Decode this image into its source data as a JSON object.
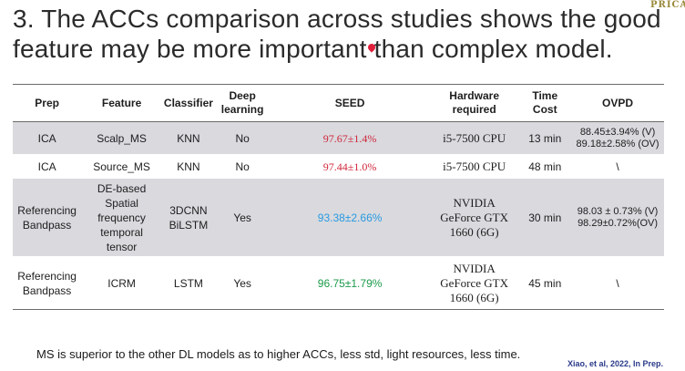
{
  "title": "3. The ACCs comparison across studies shows the good feature may be more important than complex model.",
  "logo_text": "PRICA",
  "table": {
    "headers": [
      "Prep",
      "Feature",
      "Classifier",
      "Deep learning",
      "SEED",
      "Hardware required",
      "Time Cost",
      "OVPD"
    ],
    "rows": [
      {
        "prep": "ICA",
        "feature": "Scalp_MS",
        "classifier": "KNN",
        "deep_learning": "No",
        "seed": "97.67±1.4%",
        "hardware": "i5-7500 CPU",
        "time": "13 min",
        "ovpd_1": "88.45±3.94% (V)",
        "ovpd_2": "89.18±2.58% (OV)"
      },
      {
        "prep": "ICA",
        "feature": "Source_MS",
        "classifier": "KNN",
        "deep_learning": "No",
        "seed": "97.44±1.0%",
        "hardware": "i5-7500 CPU",
        "time": "48 min",
        "ovpd_1": "\\",
        "ovpd_2": ""
      },
      {
        "prep_1": "Referencing",
        "prep_2": "Bandpass",
        "feature_lines": [
          "DE-based",
          "Spatial",
          "frequency",
          "temporal",
          "tensor"
        ],
        "classifier_1": "3DCNN",
        "classifier_2": "BiLSTM",
        "deep_learning": "Yes",
        "seed": "93.38±2.66%",
        "hardware_lines": [
          "NVIDIA",
          "GeForce GTX",
          "1660 (6G)"
        ],
        "time": "30 min",
        "ovpd_1": "98.03 ± 0.73% (V)",
        "ovpd_2": "98.29±0.72%(OV)"
      },
      {
        "prep_1": "Referencing",
        "prep_2": "Bandpass",
        "feature": "ICRM",
        "classifier": "LSTM",
        "deep_learning": "Yes",
        "seed": "96.75±1.79%",
        "hardware_lines": [
          "NVIDIA",
          "GeForce GTX",
          "1660 (6G)"
        ],
        "time": "45 min",
        "ovpd_1": "\\"
      }
    ]
  },
  "footnote": "MS is superior to the other DL models as to higher ACCs, less std, light resources, less time.",
  "source": "Xiao, et al, 2022, In Prep.",
  "colors": {
    "seed_red": "#d0263a",
    "seed_blue": "#2a9be0",
    "seed_green": "#1c9a4a",
    "row_shade": "#d9d9de"
  }
}
